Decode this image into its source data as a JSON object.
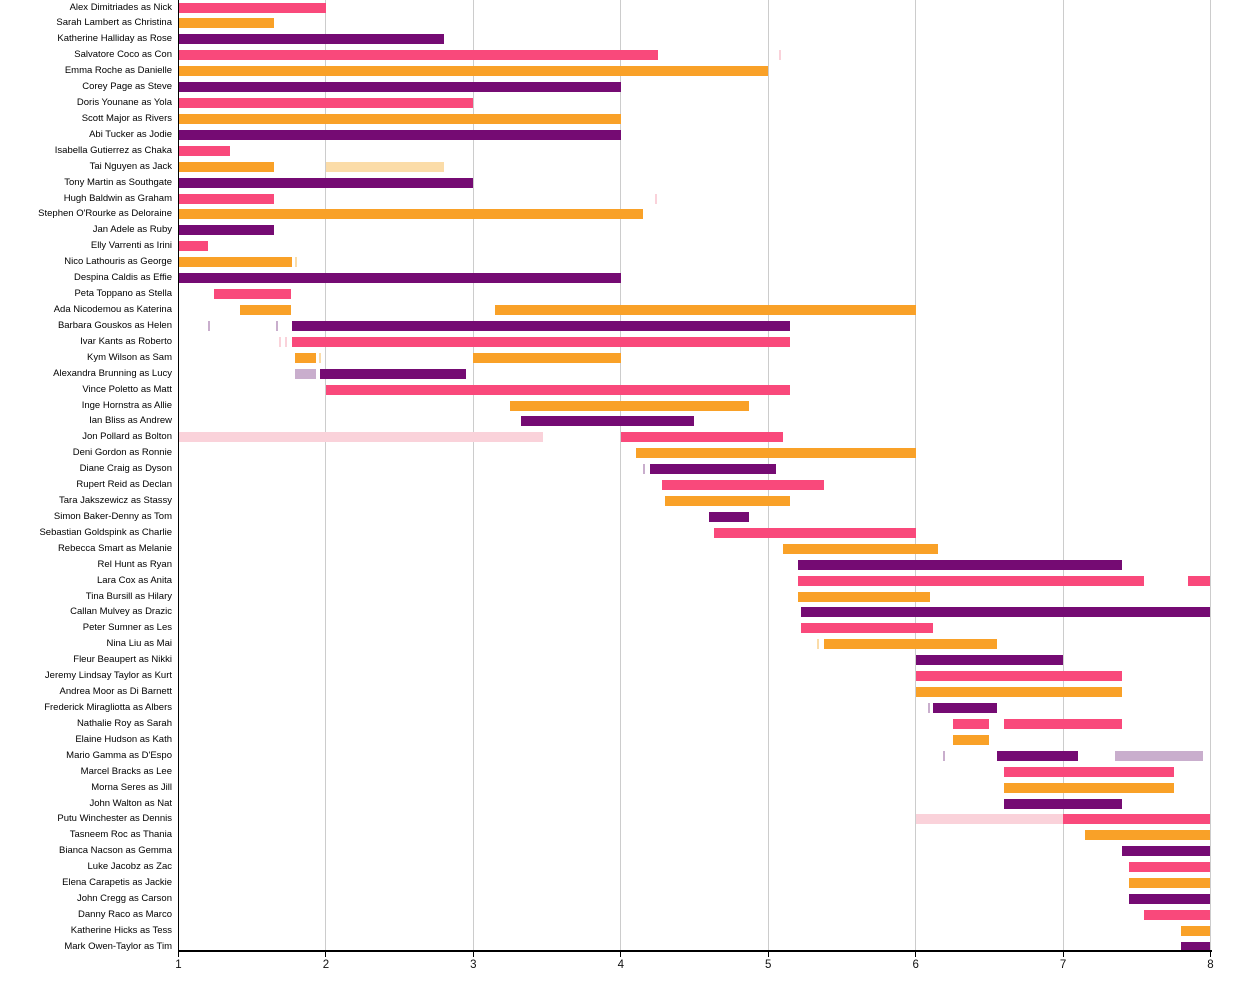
{
  "chart_data": {
    "type": "bar",
    "subtype": "gantt-cast-timeline",
    "title": "",
    "xlabel": "",
    "ylabel": "",
    "x_axis": {
      "min": 1,
      "max": 8,
      "ticks": [
        1,
        2,
        3,
        4,
        5,
        6,
        7,
        8
      ],
      "grid": true,
      "grid_color": "#cccccc"
    },
    "palette": {
      "pink": "#F9497B",
      "orange": "#F9A128",
      "purple": "#750B73",
      "lightpink": "#FAD2DA",
      "lightorange": "#FBDCA8",
      "lightpurple": "#C9AECD"
    },
    "rows": [
      {
        "label": "Alex Dimitriades as Nick",
        "bars": [
          {
            "start": 1,
            "end": 2,
            "color": "pink"
          }
        ]
      },
      {
        "label": "Sarah Lambert as Christina",
        "bars": [
          {
            "start": 1,
            "end": 1.65,
            "color": "orange"
          }
        ]
      },
      {
        "label": "Katherine Halliday as Rose",
        "bars": [
          {
            "start": 1,
            "end": 2.8,
            "color": "purple"
          }
        ]
      },
      {
        "label": "Salvatore Coco as Con",
        "bars": [
          {
            "start": 1,
            "end": 4.25,
            "color": "pink"
          }
        ],
        "markers": [
          {
            "x": 5.08,
            "color": "lightpink"
          }
        ]
      },
      {
        "label": "Emma Roche as Danielle",
        "bars": [
          {
            "start": 1,
            "end": 5,
            "color": "orange"
          }
        ]
      },
      {
        "label": "Corey Page as Steve",
        "bars": [
          {
            "start": 1,
            "end": 4,
            "color": "purple"
          }
        ]
      },
      {
        "label": "Doris Younane as Yola",
        "bars": [
          {
            "start": 1,
            "end": 3,
            "color": "pink"
          }
        ]
      },
      {
        "label": "Scott Major as Rivers",
        "bars": [
          {
            "start": 1,
            "end": 4,
            "color": "orange"
          }
        ]
      },
      {
        "label": "Abi Tucker as Jodie",
        "bars": [
          {
            "start": 1,
            "end": 4,
            "color": "purple"
          }
        ]
      },
      {
        "label": "Isabella Gutierrez as Chaka",
        "bars": [
          {
            "start": 1,
            "end": 1.35,
            "color": "pink"
          }
        ]
      },
      {
        "label": "Tai Nguyen as Jack",
        "bars": [
          {
            "start": 1,
            "end": 1.65,
            "color": "orange"
          },
          {
            "start": 2,
            "end": 2.8,
            "color": "lightorange"
          }
        ]
      },
      {
        "label": "Tony Martin as Southgate",
        "bars": [
          {
            "start": 1,
            "end": 3,
            "color": "purple"
          }
        ]
      },
      {
        "label": "Hugh Baldwin as Graham",
        "bars": [
          {
            "start": 1,
            "end": 1.65,
            "color": "pink"
          }
        ],
        "markers": [
          {
            "x": 4.24,
            "color": "lightpink"
          }
        ]
      },
      {
        "label": "Stephen O'Rourke as Deloraine",
        "bars": [
          {
            "start": 1,
            "end": 4.15,
            "color": "orange"
          }
        ]
      },
      {
        "label": "Jan Adele as Ruby",
        "bars": [
          {
            "start": 1,
            "end": 1.65,
            "color": "purple"
          }
        ]
      },
      {
        "label": "Elly Varrenti as Irini",
        "bars": [
          {
            "start": 1,
            "end": 1.2,
            "color": "pink"
          }
        ]
      },
      {
        "label": "Nico Lathouris as George",
        "bars": [
          {
            "start": 1,
            "end": 1.77,
            "color": "orange"
          }
        ],
        "markers": [
          {
            "x": 1.8,
            "color": "lightorange"
          }
        ]
      },
      {
        "label": "Despina Caldis as Effie",
        "bars": [
          {
            "start": 1,
            "end": 4,
            "color": "purple"
          }
        ]
      },
      {
        "label": "Peta Toppano as Stella",
        "bars": [
          {
            "start": 1.24,
            "end": 1.76,
            "color": "pink"
          }
        ]
      },
      {
        "label": "Ada Nicodemou as Katerina",
        "bars": [
          {
            "start": 1.42,
            "end": 1.76,
            "color": "orange"
          },
          {
            "start": 3.15,
            "end": 6,
            "color": "orange"
          }
        ]
      },
      {
        "label": "Barbara Gouskos as Helen",
        "bars": [
          {
            "start": 1.77,
            "end": 5.15,
            "color": "purple"
          }
        ],
        "markers": [
          {
            "x": 1.21,
            "color": "lightpurple"
          },
          {
            "x": 1.67,
            "color": "lightpurple"
          }
        ]
      },
      {
        "label": "Ivar Kants as Roberto",
        "bars": [
          {
            "start": 1.77,
            "end": 5.15,
            "color": "pink"
          }
        ],
        "markers": [
          {
            "x": 1.69,
            "color": "lightpink"
          },
          {
            "x": 1.73,
            "color": "lightpink"
          }
        ]
      },
      {
        "label": "Kym Wilson as Sam",
        "bars": [
          {
            "start": 1.79,
            "end": 1.93,
            "color": "orange"
          },
          {
            "start": 3,
            "end": 4,
            "color": "orange"
          }
        ],
        "markers": [
          {
            "x": 1.96,
            "color": "lightorange"
          }
        ]
      },
      {
        "label": "Alexandra Brunning as Lucy",
        "bars": [
          {
            "start": 1.79,
            "end": 1.93,
            "color": "lightpurple"
          },
          {
            "start": 1.96,
            "end": 2.95,
            "color": "purple"
          }
        ]
      },
      {
        "label": "Vince Poletto as Matt",
        "bars": [
          {
            "start": 2,
            "end": 5.15,
            "color": "pink"
          }
        ]
      },
      {
        "label": "Inge Hornstra as Allie",
        "bars": [
          {
            "start": 3.25,
            "end": 4.87,
            "color": "orange"
          }
        ]
      },
      {
        "label": "Ian Bliss as Andrew",
        "bars": [
          {
            "start": 3.32,
            "end": 4.5,
            "color": "purple"
          }
        ]
      },
      {
        "label": "Jon Pollard as Bolton",
        "bars": [
          {
            "start": 1,
            "end": 3.47,
            "color": "lightpink"
          },
          {
            "start": 4,
            "end": 5.1,
            "color": "pink"
          }
        ]
      },
      {
        "label": "Deni Gordon as Ronnie",
        "bars": [
          {
            "start": 4.1,
            "end": 6,
            "color": "orange"
          }
        ]
      },
      {
        "label": "Diane Craig as Dyson",
        "bars": [
          {
            "start": 4.2,
            "end": 5.05,
            "color": "purple"
          }
        ],
        "markers": [
          {
            "x": 4.16,
            "color": "lightpurple"
          }
        ]
      },
      {
        "label": "Rupert Reid as Declan",
        "bars": [
          {
            "start": 4.28,
            "end": 5.38,
            "color": "pink"
          }
        ]
      },
      {
        "label": "Tara Jakszewicz as Stassy",
        "bars": [
          {
            "start": 4.3,
            "end": 5.15,
            "color": "orange"
          }
        ]
      },
      {
        "label": "Simon Baker-Denny as Tom",
        "bars": [
          {
            "start": 4.6,
            "end": 4.87,
            "color": "purple"
          }
        ]
      },
      {
        "label": "Sebastian Goldspink as Charlie",
        "bars": [
          {
            "start": 4.63,
            "end": 6,
            "color": "pink"
          }
        ]
      },
      {
        "label": "Rebecca Smart as Melanie",
        "bars": [
          {
            "start": 5.1,
            "end": 6.15,
            "color": "orange"
          }
        ]
      },
      {
        "label": "Rel Hunt as Ryan",
        "bars": [
          {
            "start": 5.2,
            "end": 7.4,
            "color": "purple"
          }
        ]
      },
      {
        "label": "Lara Cox as Anita",
        "bars": [
          {
            "start": 5.2,
            "end": 7.55,
            "color": "pink"
          },
          {
            "start": 7.85,
            "end": 8,
            "color": "pink"
          }
        ]
      },
      {
        "label": "Tina Bursill as Hilary",
        "bars": [
          {
            "start": 5.2,
            "end": 6.1,
            "color": "orange"
          }
        ]
      },
      {
        "label": "Callan Mulvey as Drazic",
        "bars": [
          {
            "start": 5.22,
            "end": 8,
            "color": "purple"
          }
        ]
      },
      {
        "label": "Peter Sumner as Les",
        "bars": [
          {
            "start": 5.22,
            "end": 6.12,
            "color": "pink"
          }
        ]
      },
      {
        "label": "Nina Liu as Mai",
        "bars": [
          {
            "start": 5.38,
            "end": 6.55,
            "color": "orange"
          }
        ],
        "markers": [
          {
            "x": 5.34,
            "color": "lightorange"
          }
        ]
      },
      {
        "label": "Fleur Beaupert as Nikki",
        "bars": [
          {
            "start": 6,
            "end": 7,
            "color": "purple"
          }
        ]
      },
      {
        "label": "Jeremy Lindsay Taylor as Kurt",
        "bars": [
          {
            "start": 6,
            "end": 7.4,
            "color": "pink"
          }
        ]
      },
      {
        "label": "Andrea Moor as Di Barnett",
        "bars": [
          {
            "start": 6,
            "end": 7.4,
            "color": "orange"
          }
        ]
      },
      {
        "label": "Frederick Miragliotta as Albers",
        "bars": [
          {
            "start": 6.12,
            "end": 6.55,
            "color": "purple"
          }
        ],
        "markers": [
          {
            "x": 6.09,
            "color": "lightpurple"
          }
        ]
      },
      {
        "label": "Nathalie Roy as Sarah",
        "bars": [
          {
            "start": 6.25,
            "end": 6.5,
            "color": "pink"
          },
          {
            "start": 6.6,
            "end": 7.4,
            "color": "pink"
          }
        ]
      },
      {
        "label": "Elaine Hudson as Kath",
        "bars": [
          {
            "start": 6.25,
            "end": 6.5,
            "color": "orange"
          }
        ]
      },
      {
        "label": "Mario Gamma as D'Espo",
        "bars": [
          {
            "start": 6.55,
            "end": 7.1,
            "color": "purple"
          },
          {
            "start": 7.35,
            "end": 7.95,
            "color": "lightpurple"
          }
        ],
        "markers": [
          {
            "x": 6.19,
            "color": "lightpurple"
          }
        ]
      },
      {
        "label": "Marcel Bracks as Lee",
        "bars": [
          {
            "start": 6.6,
            "end": 7.75,
            "color": "pink"
          }
        ]
      },
      {
        "label": "Morna Seres as Jill",
        "bars": [
          {
            "start": 6.6,
            "end": 7.75,
            "color": "orange"
          }
        ]
      },
      {
        "label": "John Walton as Nat",
        "bars": [
          {
            "start": 6.6,
            "end": 7.4,
            "color": "purple"
          }
        ]
      },
      {
        "label": "Putu Winchester as Dennis",
        "bars": [
          {
            "start": 6,
            "end": 7,
            "color": "lightpink"
          },
          {
            "start": 7,
            "end": 8,
            "color": "pink"
          }
        ]
      },
      {
        "label": "Tasneem Roc as Thania",
        "bars": [
          {
            "start": 7.15,
            "end": 8,
            "color": "orange"
          }
        ]
      },
      {
        "label": "Bianca Nacson as Gemma",
        "bars": [
          {
            "start": 7.4,
            "end": 8,
            "color": "purple"
          }
        ]
      },
      {
        "label": "Luke Jacobz as Zac",
        "bars": [
          {
            "start": 7.45,
            "end": 8,
            "color": "pink"
          }
        ]
      },
      {
        "label": "Elena Carapetis as Jackie",
        "bars": [
          {
            "start": 7.45,
            "end": 8,
            "color": "orange"
          }
        ]
      },
      {
        "label": "John Cregg as Carson",
        "bars": [
          {
            "start": 7.45,
            "end": 8,
            "color": "purple"
          }
        ]
      },
      {
        "label": "Danny Raco as Marco",
        "bars": [
          {
            "start": 7.55,
            "end": 8,
            "color": "pink"
          }
        ]
      },
      {
        "label": "Katherine Hicks as Tess",
        "bars": [
          {
            "start": 7.8,
            "end": 8,
            "color": "orange"
          }
        ]
      },
      {
        "label": "Mark Owen-Taylor as Tim",
        "bars": [
          {
            "start": 7.8,
            "end": 8,
            "color": "purple"
          }
        ]
      }
    ]
  }
}
